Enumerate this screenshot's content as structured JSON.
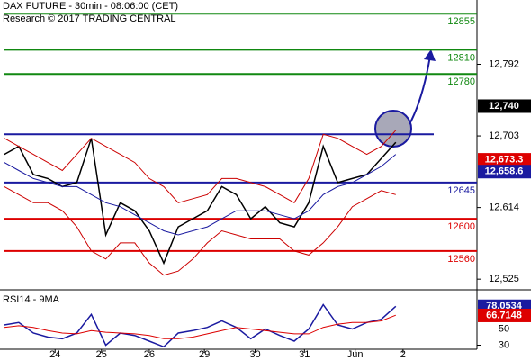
{
  "chart_data": [
    {
      "type": "line",
      "title": "DAX FUTURE - 30min - 08:06:00 (CET)",
      "subtitle": "Research © 2017 TRADING CENTRAL",
      "xlim": [
        -0.3,
        32.6
      ],
      "ylim": [
        12514,
        12872
      ],
      "yticks": [
        {
          "value": 12792,
          "label": "12,792"
        },
        {
          "value": 12703,
          "label": "12,703"
        },
        {
          "value": 12614,
          "label": "12,614"
        },
        {
          "value": 12525,
          "label": "12,525"
        }
      ],
      "x": [
        0,
        1,
        2,
        3,
        4,
        5,
        6,
        7,
        8,
        9,
        10,
        11,
        12,
        13,
        14,
        15,
        16,
        17,
        18,
        19,
        20,
        21,
        22,
        23,
        24,
        25,
        26,
        27
      ],
      "series": [
        {
          "name": "Price",
          "color": "#000000",
          "values": [
            12680,
            12690,
            12655,
            12650,
            12640,
            12645,
            12700,
            12580,
            12620,
            12610,
            12585,
            12545,
            12590,
            12600,
            12610,
            12640,
            12630,
            12600,
            12615,
            12595,
            12590,
            12620,
            12690,
            12645,
            12650,
            12655,
            12675,
            12695
          ]
        },
        {
          "name": "Upper band",
          "color": "#cc0000",
          "values": [
            12700,
            12690,
            12680,
            12670,
            12660,
            12680,
            12700,
            12690,
            12680,
            12670,
            12650,
            12640,
            12620,
            12625,
            12630,
            12650,
            12650,
            12645,
            12640,
            12630,
            12620,
            12650,
            12705,
            12700,
            12690,
            12680,
            12690,
            12710
          ]
        },
        {
          "name": "Lower band",
          "color": "#cc0000",
          "values": [
            12640,
            12630,
            12620,
            12620,
            12610,
            12590,
            12560,
            12550,
            12570,
            12570,
            12545,
            12530,
            12535,
            12550,
            12570,
            12585,
            12580,
            12575,
            12575,
            12575,
            12560,
            12555,
            12570,
            12590,
            12615,
            12625,
            12635,
            12630
          ]
        },
        {
          "name": "Moving average",
          "color": "#1a1aa0",
          "values": [
            12670,
            12660,
            12650,
            12645,
            12640,
            12640,
            12630,
            12620,
            12615,
            12605,
            12595,
            12585,
            12580,
            12585,
            12590,
            12600,
            12610,
            12610,
            12610,
            12605,
            12600,
            12610,
            12630,
            12640,
            12645,
            12655,
            12665,
            12680
          ]
        }
      ],
      "resistance_line": 12705,
      "levels": [
        {
          "value": 12855,
          "color": "#118811"
        },
        {
          "value": 12810,
          "color": "#118811"
        },
        {
          "value": 12780,
          "color": "#118811"
        },
        {
          "value": 12645,
          "color": "#1a1aa0"
        },
        {
          "value": 12600,
          "color": "#dd0000"
        },
        {
          "value": 12560,
          "color": "#dd0000"
        }
      ],
      "markers": [
        {
          "value": 12740,
          "label": "12,740",
          "color": "#000000"
        },
        {
          "value": 12673.3,
          "label": "12,673.3",
          "color": "#dd0000"
        },
        {
          "value": 12658.6,
          "label": "12,658.6",
          "color": "#1a1aa0"
        }
      ]
    },
    {
      "type": "line",
      "title": "RSI14 - 9MA",
      "xlim": [
        -0.3,
        32.6
      ],
      "ylim": [
        25,
        95
      ],
      "yticks": [
        50,
        30
      ],
      "xticks": [
        {
          "value": 3.5,
          "label": "24"
        },
        {
          "value": 6.7,
          "label": "25"
        },
        {
          "value": 10,
          "label": "26"
        },
        {
          "value": 13.8,
          "label": "29"
        },
        {
          "value": 17.3,
          "label": "30"
        },
        {
          "value": 20.7,
          "label": "31"
        },
        {
          "value": 24.2,
          "label": "Jun"
        },
        {
          "value": 27.5,
          "label": "2"
        }
      ],
      "x": [
        0,
        1,
        2,
        3,
        4,
        5,
        6,
        7,
        8,
        9,
        10,
        11,
        12,
        13,
        14,
        15,
        16,
        17,
        18,
        19,
        20,
        21,
        22,
        23,
        24,
        25,
        26,
        27
      ],
      "series": [
        {
          "name": "RSI14",
          "color": "#1a1aa0",
          "values": [
            55,
            58,
            45,
            40,
            38,
            45,
            68,
            30,
            45,
            42,
            35,
            28,
            45,
            48,
            52,
            60,
            52,
            38,
            50,
            42,
            35,
            50,
            80,
            55,
            50,
            58,
            62,
            78
          ]
        },
        {
          "name": "9MA",
          "color": "#dd0000",
          "values": [
            52,
            54,
            52,
            48,
            45,
            44,
            48,
            46,
            45,
            44,
            42,
            38,
            38,
            40,
            44,
            48,
            52,
            50,
            48,
            46,
            44,
            44,
            52,
            56,
            58,
            58,
            60,
            67
          ]
        }
      ],
      "markers": [
        {
          "value": 78.0534,
          "color": "#1a1aa0"
        },
        {
          "value": 66.7148,
          "color": "#dd0000"
        }
      ]
    }
  ]
}
